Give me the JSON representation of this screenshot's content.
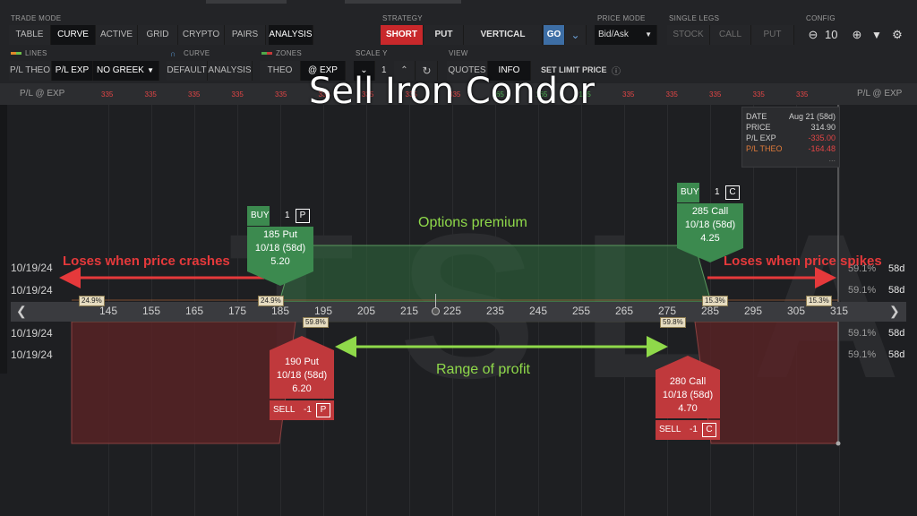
{
  "overlay_title": "Sell Iron Condor",
  "trade_mode": {
    "label": "TRADE MODE",
    "tabs": [
      "TABLE",
      "CURVE",
      "ACTIVE",
      "GRID",
      "CRYPTO",
      "PAIRS",
      "ANALYSIS"
    ],
    "selected": "CURVE"
  },
  "strategy": {
    "label": "STRATEGY",
    "short_label": "SHORT",
    "put_label": "PUT",
    "vertical_label": "VERTICAL",
    "go_label": "GO"
  },
  "price_mode": {
    "label": "PRICE MODE",
    "value": "Bid/Ask"
  },
  "single_legs": {
    "label": "SINGLE LEGS",
    "items": [
      "STOCK",
      "CALL",
      "PUT"
    ]
  },
  "config": {
    "label": "CONFIG",
    "zoom_value": "10"
  },
  "lines": {
    "label": "LINES",
    "items": [
      "P/L THEO",
      "P/L EXP"
    ],
    "greek_select": "NO GREEK"
  },
  "curve": {
    "label": "CURVE",
    "items": [
      "DEFAULT",
      "ANALYSIS"
    ]
  },
  "zones": {
    "label": "ZONES",
    "items": [
      "THEO",
      "@ EXP"
    ]
  },
  "scale_y": {
    "label": "SCALE Y",
    "value": "1"
  },
  "view": {
    "label": "VIEW",
    "items": [
      "QUOTES",
      "INFO"
    ]
  },
  "set_limit_price": "SET LIMIT PRICE",
  "pl_row": {
    "left_label": "P/L @ EXP",
    "right_label": "P/L @ EXP",
    "values": [
      "335",
      "335",
      "335",
      "335",
      "335",
      "335",
      "335",
      "335",
      "335",
      "165",
      "165",
      "165",
      "335",
      "335",
      "335",
      "335",
      "335"
    ],
    "colors": [
      "red",
      "red",
      "red",
      "red",
      "red",
      "red",
      "red",
      "red",
      "red",
      "green",
      "green",
      "green",
      "red",
      "red",
      "red",
      "red",
      "red"
    ]
  },
  "info_box": {
    "date_label": "DATE",
    "date_value": "Aug 21 (58d)",
    "price_label": "PRICE",
    "price_value": "314.90",
    "plexp_label": "P/L EXP",
    "plexp_value": "-335.00",
    "pltheo_label": "P/L THEO",
    "pltheo_value": "-164.48",
    "more": "..."
  },
  "watermark": "TSLA",
  "axis_ticks": [
    "145",
    "155",
    "165",
    "175",
    "185",
    "195",
    "205",
    "215",
    "225",
    "235",
    "245",
    "255",
    "265",
    "275",
    "285",
    "295",
    "305",
    "315"
  ],
  "left_dates": [
    "10/19/24",
    "10/19/24",
    "10/19/24",
    "10/19/24"
  ],
  "right_rows": [
    {
      "pct": "59.1%",
      "days": "58d"
    },
    {
      "pct": "59.1%",
      "days": "58d"
    },
    {
      "pct": "59.1%",
      "days": "58d"
    },
    {
      "pct": "59.1%",
      "days": "58d"
    }
  ],
  "prob_tags": {
    "left_outer": "24.9%",
    "left_inner": "24.9%",
    "right_inner": "15.3%",
    "right_outer": "15.3%",
    "below_left": "59.8%",
    "below_right": "59.8%"
  },
  "legs": {
    "buy_put": {
      "action": "BUY",
      "qty": "1",
      "type_letter": "P",
      "line1": "185 Put",
      "line2": "10/18 (58d)",
      "price": "5.20"
    },
    "buy_call": {
      "action": "BUY",
      "qty": "1",
      "type_letter": "C",
      "line1": "285 Call",
      "line2": "10/18 (58d)",
      "price": "4.25"
    },
    "sell_put": {
      "action": "SELL",
      "qty": "-1",
      "type_letter": "P",
      "line1": "190 Put",
      "line2": "10/18 (58d)",
      "price": "6.20"
    },
    "sell_call": {
      "action": "SELL",
      "qty": "-1",
      "type_letter": "C",
      "line1": "280 Call",
      "line2": "10/18 (58d)",
      "price": "4.70"
    }
  },
  "annotations": {
    "options_premium": "Options premium",
    "loses_crash": "Loses when price crashes",
    "loses_spike": "Loses when price spikes",
    "range_profit": "Range of profit"
  },
  "colors": {
    "profit_green": "#2f6b3e",
    "loss_red": "#5a2325",
    "accent_red": "#c8282b",
    "accent_blue": "#3d6ea5",
    "annotation_red": "#e5393b",
    "annotation_green": "#8fd94a"
  }
}
